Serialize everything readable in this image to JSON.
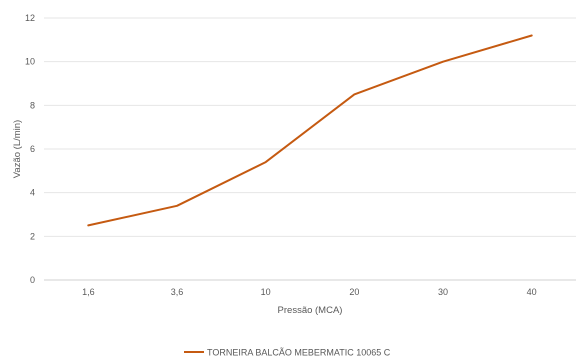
{
  "chart_data": {
    "type": "line",
    "categories": [
      "1,6",
      "3,6",
      "10",
      "20",
      "30",
      "40"
    ],
    "series": [
      {
        "name": "TORNEIRA BALCÃO MEBERMATIC 10065 C",
        "values": [
          2.5,
          3.4,
          5.4,
          8.5,
          10.0,
          11.2
        ],
        "color": "#C55A11"
      }
    ],
    "xlabel": "Pressão (MCA)",
    "ylabel": "Vazão (L/min)",
    "ylim": [
      0,
      12
    ],
    "yticks": [
      0,
      2,
      4,
      6,
      8,
      10,
      12
    ],
    "grid": true,
    "legend_position": "bottom"
  }
}
